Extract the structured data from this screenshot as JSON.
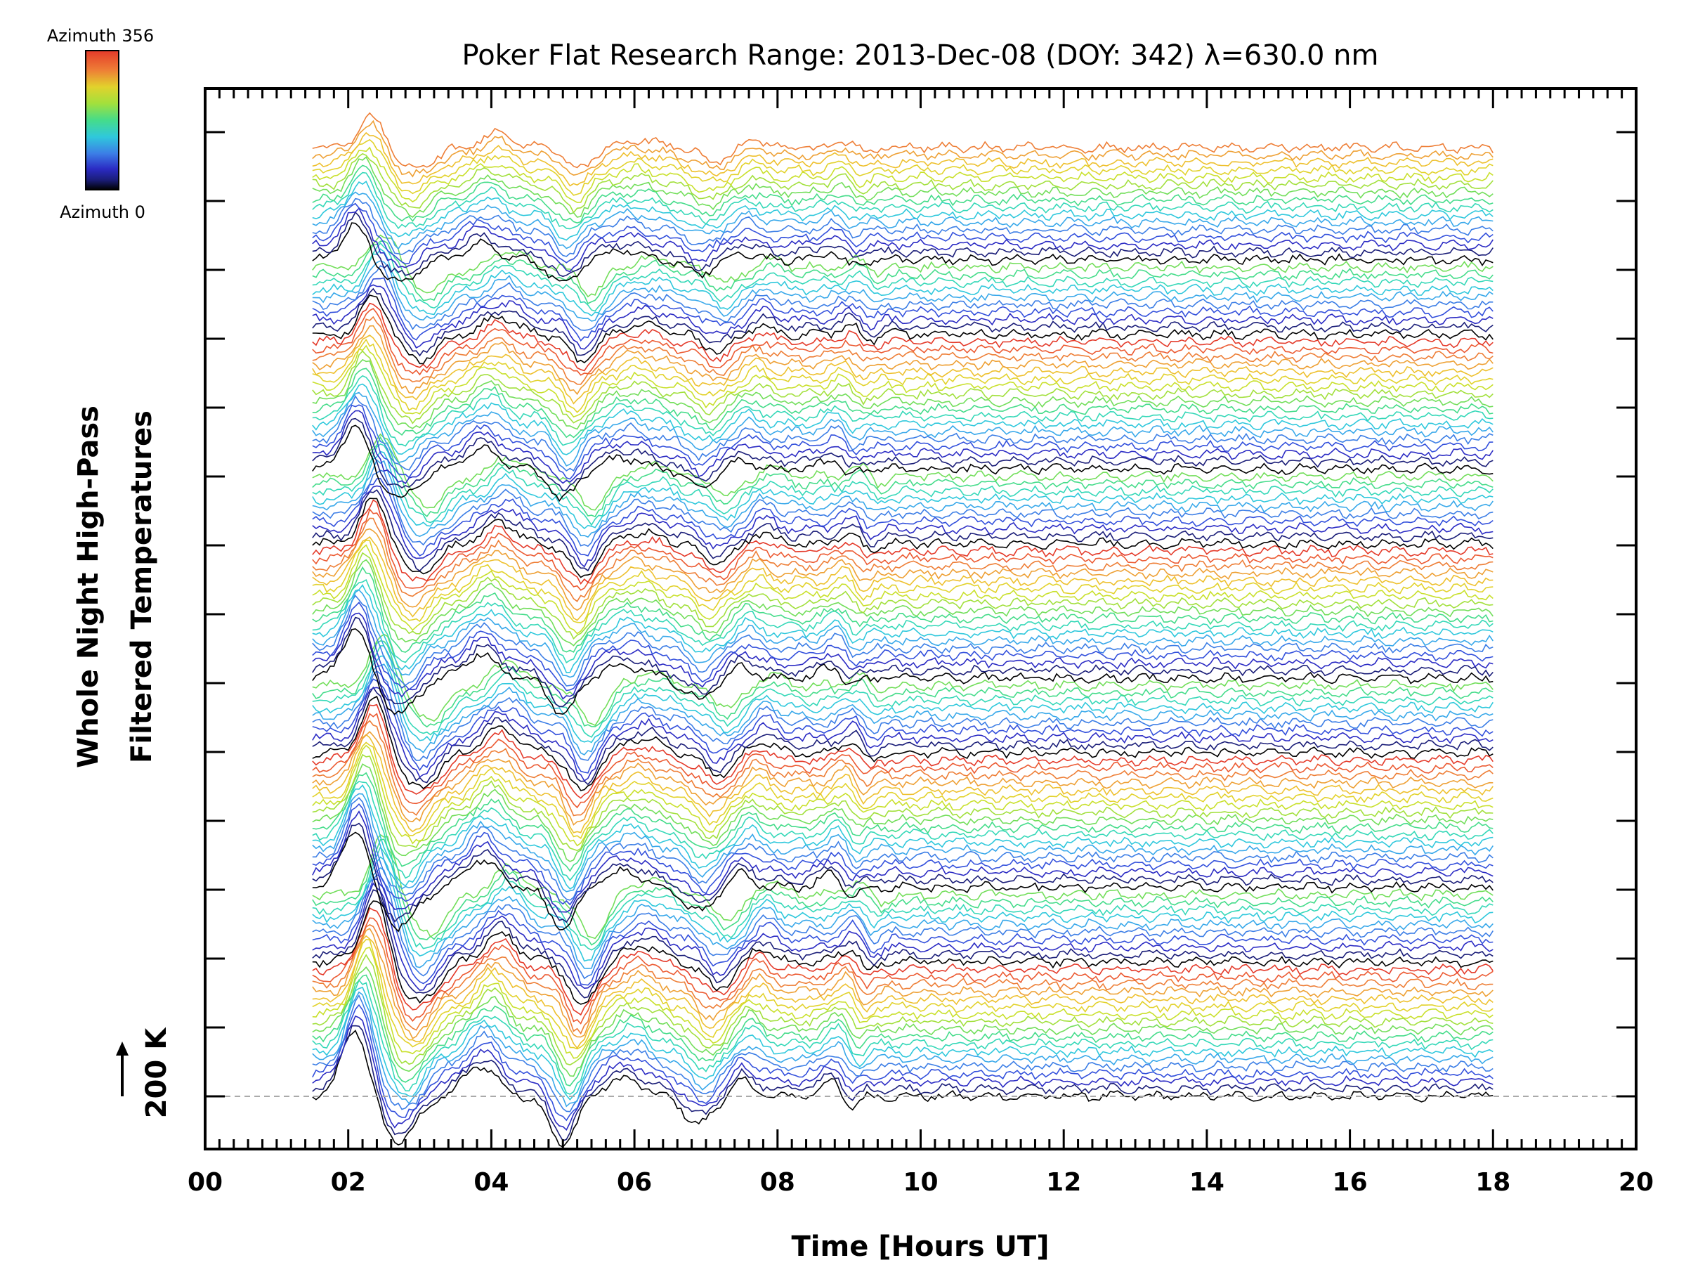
{
  "chart_data": {
    "type": "line",
    "title": "Poker Flat Research Range: 2013-Dec-08 (DOY: 342) λ=630.0 nm",
    "xlabel": "Time [Hours UT]",
    "ylabel_line1": "Whole Night High-Pass",
    "ylabel_line2": "Filtered Temperatures",
    "scale_label": "200 K",
    "scale_value_K": 200,
    "xlim": [
      0,
      20
    ],
    "x_ticks": [
      "00",
      "02",
      "04",
      "06",
      "08",
      "10",
      "12",
      "14",
      "16",
      "18",
      "20"
    ],
    "colorbar": {
      "top_label": "Azimuth 356",
      "bottom_label": "Azimuth 0",
      "min": 0,
      "max": 356
    },
    "data_time_range": [
      1.5,
      18.0
    ],
    "trace_count": 128,
    "traces_per_cycle": 28,
    "cycle_colors": [
      "#000000",
      "#1a1d78",
      "#2b2bc4",
      "#3350dc",
      "#3c7ee6",
      "#38a8ea",
      "#2fc8dc",
      "#35d8b8",
      "#45dc8a",
      "#72de5a",
      "#a2e03c",
      "#c9e02c",
      "#e2d22c",
      "#eec02e",
      "#eea034",
      "#ee7e36",
      "#ec5a32",
      "#e43a2a",
      "#000000",
      "#1a1d78",
      "#2b2bc4",
      "#3350dc",
      "#3c7ee6",
      "#38a8ea",
      "#2fc8dc",
      "#35d8b8",
      "#45dc8a",
      "#72de5a"
    ],
    "baseline_style": "dashed gray",
    "features": [
      {
        "time_UT": 2.1,
        "amplitude_K": 200,
        "description": "peak"
      },
      {
        "time_UT": 2.7,
        "amplitude_K": -130,
        "description": "dip"
      },
      {
        "time_UT": 3.85,
        "amplitude_K": 90,
        "description": "peak"
      },
      {
        "time_UT": 5.0,
        "amplitude_K": -140,
        "description": "dip"
      },
      {
        "time_UT": 5.85,
        "amplitude_K": 50,
        "description": "peak"
      },
      {
        "time_UT": 6.9,
        "amplitude_K": -80,
        "description": "dip"
      },
      {
        "time_UT": 7.5,
        "amplitude_K": 45,
        "description": "peak"
      },
      {
        "time_UT": 8.75,
        "amplitude_K": 45,
        "description": "peak"
      },
      {
        "time_UT": 9.0,
        "amplitude_K": -40,
        "description": "dip"
      }
    ],
    "grid": false,
    "legend": "colorbar top-left"
  }
}
